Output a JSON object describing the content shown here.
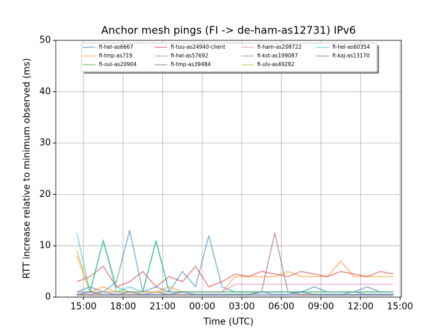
{
  "chart_data": {
    "type": "line",
    "title": "Anchor mesh pings (FI -> de-ham-as12731) IPv6",
    "x_label": "Time (UTC)",
    "y_label": "RTT increase relative to minimum observed (ms)",
    "x": [
      14.5,
      15.5,
      16.5,
      17.5,
      18.5,
      19.5,
      20.5,
      21.5,
      22.5,
      23.5,
      24.5,
      25.5,
      26.5,
      27.5,
      28.5,
      29.5,
      30.5,
      31.5,
      32.5,
      33.5,
      34.5,
      35.5,
      36.5,
      37.5,
      38.5
    ],
    "xlim": [
      12.9,
      39.1
    ],
    "xticks": [
      {
        "value": 15,
        "label": "15:00"
      },
      {
        "value": 18,
        "label": "18:00"
      },
      {
        "value": 21,
        "label": "21:00"
      },
      {
        "value": 24,
        "label": "00:00"
      },
      {
        "value": 27,
        "label": "03:00"
      },
      {
        "value": 30,
        "label": "06:00"
      },
      {
        "value": 33,
        "label": "09:00"
      },
      {
        "value": 36,
        "label": "12:00"
      },
      {
        "value": 39,
        "label": "15:00"
      }
    ],
    "ylim": [
      0,
      50
    ],
    "yticks": [
      0,
      10,
      20,
      30,
      40,
      50
    ],
    "grid": true,
    "legend": "upper center",
    "series": [
      {
        "name": "fi-hel-as6667",
        "color": "#1f77b4",
        "values": [
          1,
          2,
          1,
          3,
          13,
          1,
          2,
          1,
          5,
          2,
          12,
          2,
          1,
          1,
          1,
          1,
          1,
          1,
          2,
          1,
          1,
          1,
          2,
          1,
          1
        ]
      },
      {
        "name": "fi-tmp-as719",
        "color": "#ff7f0e",
        "values": [
          9,
          1,
          2,
          1,
          1,
          1,
          1,
          2,
          1,
          1,
          1,
          1,
          4,
          4,
          4,
          4,
          5,
          4,
          4,
          4,
          7,
          4,
          4,
          4,
          4
        ]
      },
      {
        "name": "fi-oul-as20904",
        "color": "#2ca02c",
        "values": [
          1,
          1,
          11,
          2,
          1,
          1,
          11,
          1,
          1,
          1,
          1,
          1,
          1,
          1,
          1,
          1,
          1,
          1,
          1,
          1,
          1,
          1,
          1,
          1,
          1
        ]
      },
      {
        "name": "fi-tuu-as24940-client",
        "color": "#d62728",
        "values": [
          3,
          4,
          6,
          2,
          3,
          5,
          2,
          4,
          3,
          6,
          2,
          3,
          4.5,
          4,
          5,
          4.5,
          4,
          5,
          4.5,
          4,
          5,
          4.5,
          4,
          5,
          4.5
        ]
      },
      {
        "name": "fi-hel-as57692",
        "color": "#9467bd",
        "values": [
          0.5,
          0.5,
          1,
          0.5,
          0.5,
          0.5,
          1,
          0.5,
          0.5,
          0.5,
          0.5,
          0.5,
          0.5,
          0.5,
          1,
          0.5,
          0.5,
          0.5,
          0.5,
          0.5,
          0.5,
          1,
          0.5,
          0.5,
          0.5
        ]
      },
      {
        "name": "fi-tmp-as39484",
        "color": "#8c564b",
        "values": [
          0.5,
          0.5,
          0.5,
          0.5,
          0.5,
          0.5,
          0.5,
          0.5,
          0.5,
          0.5,
          0.5,
          0.5,
          0.5,
          0.5,
          1,
          12.5,
          1,
          0.5,
          0.5,
          0.5,
          0.5,
          0.5,
          0.5,
          0.5,
          0.5
        ]
      },
      {
        "name": "fi-ham-as208722",
        "color": "#e377c2",
        "values": [
          1,
          1,
          1,
          1,
          1,
          1,
          1,
          1,
          1,
          1,
          1,
          1,
          2.5,
          2.5,
          2.5,
          2.5,
          2.5,
          2.5,
          2.5,
          2.5,
          2.5,
          2.5,
          2.5,
          2.5,
          2.5
        ]
      },
      {
        "name": "fi-kst-as199087",
        "color": "#7f7f7f",
        "values": [
          0.3,
          0.3,
          0.3,
          0.3,
          0.3,
          0.3,
          0.3,
          0.3,
          0.3,
          0.3,
          0.3,
          0.3,
          0.3,
          0.3,
          0.3,
          0.3,
          0.3,
          0.3,
          0.3,
          0.3,
          0.3,
          0.3,
          0.3,
          0.3,
          0.3
        ]
      },
      {
        "name": "fi-ulv-as49282",
        "color": "#bcbd22",
        "values": [
          8,
          1,
          1,
          1,
          1,
          1,
          1,
          1,
          1,
          1,
          1,
          1,
          1,
          1,
          1,
          1,
          1,
          1,
          1,
          1,
          1,
          1,
          1,
          1,
          1
        ]
      },
      {
        "name": "fi-hel-as60354",
        "color": "#17becf",
        "values": [
          12.5,
          1,
          11,
          1,
          2,
          1,
          11,
          1,
          1,
          1,
          1,
          1,
          1,
          1,
          1,
          1,
          1,
          1,
          1,
          1,
          1,
          1,
          1,
          1,
          1
        ]
      },
      {
        "name": "fi-kaj-as13170",
        "color": "#1f77b4",
        "values": [
          0.5,
          1,
          0.5,
          0.5,
          1,
          0.5,
          0.5,
          0.5,
          1,
          0.5,
          0.5,
          0.5,
          0.5,
          0.5,
          0.5,
          0.5,
          0.5,
          1,
          0.5,
          0.5,
          0.5,
          0.5,
          0.5,
          0.5,
          0.5
        ]
      }
    ]
  }
}
